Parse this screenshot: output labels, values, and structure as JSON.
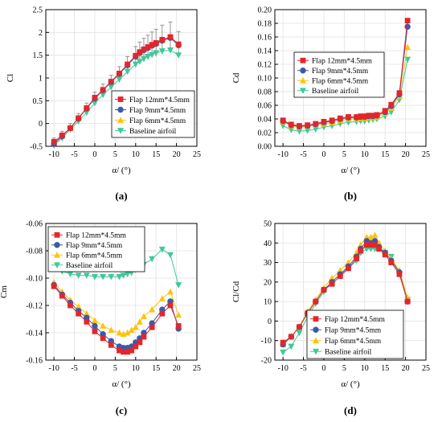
{
  "series_colors": [
    "#e3262b",
    "#3b5aa8",
    "#ffc20e",
    "#3ec99a"
  ],
  "chart_data": [
    {
      "type": "line",
      "panel_label": "(a)",
      "xlabel": "α/ (°)",
      "ylabel": "Cl",
      "xlim": [
        -12,
        25
      ],
      "ylim": [
        -0.5,
        2.5
      ],
      "xticks": [
        -10,
        -5,
        0,
        5,
        10,
        15,
        20,
        25
      ],
      "yticks": [
        -0.5,
        0,
        0.5,
        1,
        1.5,
        2,
        2.5
      ],
      "yticklabels": [
        "-0.5",
        "0",
        "0.5",
        "1",
        "1.5",
        "2",
        "2.5"
      ],
      "grid": true,
      "legend_position": "bottom-right",
      "error_bars": true,
      "x": [
        -10,
        -8,
        -6,
        -4,
        -2,
        0,
        2,
        4,
        6,
        8,
        10,
        11,
        12,
        13,
        14,
        15,
        16.5,
        18.5,
        20.5
      ],
      "series": [
        {
          "name": "Flap 12mm*4.5mm",
          "marker": "square",
          "values": [
            -0.4,
            -0.26,
            -0.1,
            0.12,
            0.34,
            0.57,
            0.74,
            0.92,
            1.1,
            1.3,
            1.49,
            1.57,
            1.63,
            1.68,
            1.73,
            1.77,
            1.84,
            1.9,
            1.74
          ]
        },
        {
          "name": "Flap  9mm*4.5mm",
          "marker": "circle",
          "values": [
            -0.45,
            -0.28,
            -0.1,
            0.11,
            0.33,
            0.55,
            0.73,
            0.91,
            1.09,
            1.28,
            1.47,
            1.55,
            1.61,
            1.66,
            1.71,
            1.75,
            1.82,
            1.88,
            1.72
          ]
        },
        {
          "name": "Flap  6mm*4.5mm",
          "marker": "triangle-up",
          "values": [
            -0.43,
            -0.27,
            -0.1,
            0.12,
            0.34,
            0.56,
            0.74,
            0.92,
            1.1,
            1.29,
            1.48,
            1.56,
            1.62,
            1.67,
            1.72,
            1.76,
            1.83,
            1.89,
            1.74
          ]
        },
        {
          "name": "Baseline airfoil",
          "marker": "triangle-down",
          "values": [
            -0.48,
            -0.32,
            -0.13,
            0.05,
            0.24,
            0.45,
            0.63,
            0.8,
            0.97,
            1.14,
            1.3,
            1.36,
            1.42,
            1.47,
            1.51,
            1.55,
            1.59,
            1.61,
            1.5
          ]
        }
      ],
      "error": [
        0.08,
        0.09,
        0.1,
        0.1,
        0.11,
        0.12,
        0.13,
        0.14,
        0.15,
        0.17,
        0.2,
        0.22,
        0.24,
        0.26,
        0.28,
        0.3,
        0.32,
        0.33,
        0.28
      ]
    },
    {
      "type": "line",
      "panel_label": "(b)",
      "xlabel": "α/ (°)",
      "ylabel": "Cd",
      "xlim": [
        -12,
        25
      ],
      "ylim": [
        0,
        0.2
      ],
      "xticks": [
        -10,
        -5,
        0,
        5,
        10,
        15,
        20,
        25
      ],
      "yticks": [
        0,
        0.02,
        0.04,
        0.06,
        0.08,
        0.1,
        0.12,
        0.14,
        0.16,
        0.18,
        0.2
      ],
      "yticklabels": [
        "0.00",
        "0.02",
        "0.04",
        "0.06",
        "0.08",
        "0.10",
        "0.12",
        "0.14",
        "0.16",
        "0.18",
        "0.20"
      ],
      "grid": true,
      "legend_position": "top-left",
      "x": [
        -10,
        -8,
        -6,
        -4,
        -2,
        0,
        2,
        4,
        6,
        8,
        9,
        10,
        11,
        12,
        13,
        15,
        16.5,
        18.5,
        20.5
      ],
      "series": [
        {
          "name": "Flap 12mm*4.5mm",
          "marker": "square",
          "values": [
            0.038,
            0.032,
            0.03,
            0.031,
            0.033,
            0.036,
            0.038,
            0.041,
            0.043,
            0.043,
            0.044,
            0.044,
            0.045,
            0.045,
            0.046,
            0.052,
            0.061,
            0.078,
            0.184
          ]
        },
        {
          "name": "Flap  9mm*4.5mm",
          "marker": "circle",
          "values": [
            0.037,
            0.031,
            0.029,
            0.03,
            0.032,
            0.035,
            0.037,
            0.04,
            0.042,
            0.042,
            0.043,
            0.043,
            0.044,
            0.044,
            0.045,
            0.05,
            0.059,
            0.076,
            0.175
          ]
        },
        {
          "name": "Flap  6mm*4.5mm",
          "marker": "triangle-up",
          "values": [
            0.036,
            0.03,
            0.028,
            0.029,
            0.031,
            0.033,
            0.035,
            0.038,
            0.04,
            0.04,
            0.041,
            0.041,
            0.042,
            0.042,
            0.043,
            0.048,
            0.056,
            0.073,
            0.145
          ]
        },
        {
          "name": "Baseline airfoil",
          "marker": "triangle-down",
          "values": [
            0.03,
            0.024,
            0.022,
            0.023,
            0.025,
            0.028,
            0.03,
            0.033,
            0.035,
            0.036,
            0.037,
            0.037,
            0.038,
            0.039,
            0.04,
            0.044,
            0.05,
            0.068,
            0.127
          ]
        }
      ]
    },
    {
      "type": "line",
      "panel_label": "(c)",
      "xlabel": "α/ (°)",
      "ylabel": "Cm",
      "xlim": [
        -12,
        25
      ],
      "ylim": [
        -0.16,
        -0.06
      ],
      "xticks": [
        -10,
        -5,
        0,
        5,
        10,
        15,
        20,
        25
      ],
      "yticks": [
        -0.16,
        -0.14,
        -0.12,
        -0.1,
        -0.08,
        -0.06
      ],
      "yticklabels": [
        "-0.16",
        "-0.14",
        "-0.12",
        "-0.10",
        "-0.08",
        "-0.06"
      ],
      "grid": true,
      "legend_position": "top-left",
      "x": [
        -10,
        -8,
        -6,
        -4,
        -2,
        0,
        2,
        4,
        6,
        7,
        8,
        9,
        10,
        11,
        12,
        14,
        16.5,
        18.5,
        20.5
      ],
      "series": [
        {
          "name": "Flap 12mm*4.5mm",
          "marker": "square",
          "values": [
            -0.106,
            -0.113,
            -0.12,
            -0.126,
            -0.132,
            -0.139,
            -0.144,
            -0.149,
            -0.153,
            -0.154,
            -0.154,
            -0.153,
            -0.15,
            -0.147,
            -0.143,
            -0.136,
            -0.126,
            -0.12,
            -0.135
          ]
        },
        {
          "name": "Flap  9mm*4.5mm",
          "marker": "circle",
          "values": [
            -0.105,
            -0.112,
            -0.118,
            -0.124,
            -0.129,
            -0.135,
            -0.141,
            -0.146,
            -0.15,
            -0.151,
            -0.151,
            -0.15,
            -0.147,
            -0.144,
            -0.14,
            -0.133,
            -0.123,
            -0.117,
            -0.137
          ]
        },
        {
          "name": "Flap  6mm*4.5mm",
          "marker": "triangle-up",
          "values": [
            -0.103,
            -0.11,
            -0.116,
            -0.121,
            -0.126,
            -0.131,
            -0.135,
            -0.138,
            -0.14,
            -0.141,
            -0.14,
            -0.138,
            -0.136,
            -0.132,
            -0.128,
            -0.123,
            -0.115,
            -0.11,
            -0.127
          ]
        },
        {
          "name": "Baseline airfoil",
          "marker": "triangle-down",
          "values": [
            -0.092,
            -0.095,
            -0.097,
            -0.098,
            -0.098,
            -0.099,
            -0.099,
            -0.099,
            -0.099,
            -0.098,
            -0.097,
            -0.096,
            -0.094,
            -0.092,
            -0.09,
            -0.086,
            -0.079,
            -0.083,
            -0.105
          ]
        }
      ]
    },
    {
      "type": "line",
      "panel_label": "(d)",
      "xlabel": "α/ (°)",
      "ylabel": "Cl/Cd",
      "xlim": [
        -12,
        25
      ],
      "ylim": [
        -20,
        50
      ],
      "xticks": [
        -10,
        -5,
        0,
        5,
        10,
        15,
        20,
        25
      ],
      "yticks": [
        -20,
        -10,
        0,
        10,
        20,
        30,
        40,
        50
      ],
      "yticklabels": [
        "-20",
        "-10",
        "0",
        "10",
        "20",
        "30",
        "40",
        "50"
      ],
      "grid": true,
      "legend_position": "bottom-right",
      "x": [
        -10,
        -8,
        -6,
        -4,
        -2,
        0,
        2,
        4,
        6,
        8,
        9,
        10.5,
        11.5,
        12.5,
        13.5,
        15,
        16.5,
        18.5,
        20.5
      ],
      "series": [
        {
          "name": "Flap 12mm*4.5mm",
          "marker": "square",
          "values": [
            -11,
            -8,
            -3,
            4,
            10,
            16,
            19,
            23,
            27,
            32,
            36,
            39,
            39,
            39,
            37,
            34,
            30,
            24,
            10
          ]
        },
        {
          "name": "Flap  9mm*4.5mm",
          "marker": "circle",
          "values": [
            -12,
            -8,
            -3,
            4,
            10,
            16,
            20,
            24,
            28,
            33,
            37,
            41,
            40,
            41,
            38,
            35,
            31,
            25,
            10
          ]
        },
        {
          "name": "Flap  6mm*4.5mm",
          "marker": "triangle-up",
          "values": [
            -12,
            -8,
            -3,
            5,
            11,
            17,
            22,
            26,
            30,
            35,
            39,
            43,
            43,
            44,
            40,
            36,
            32,
            26,
            12
          ]
        },
        {
          "name": "Baseline airfoil",
          "marker": "triangle-down",
          "values": [
            -16,
            -13,
            -6,
            2,
            9,
            15,
            20,
            24,
            27,
            31,
            35,
            37,
            37,
            37,
            37,
            35,
            33,
            24,
            11
          ]
        }
      ]
    }
  ]
}
